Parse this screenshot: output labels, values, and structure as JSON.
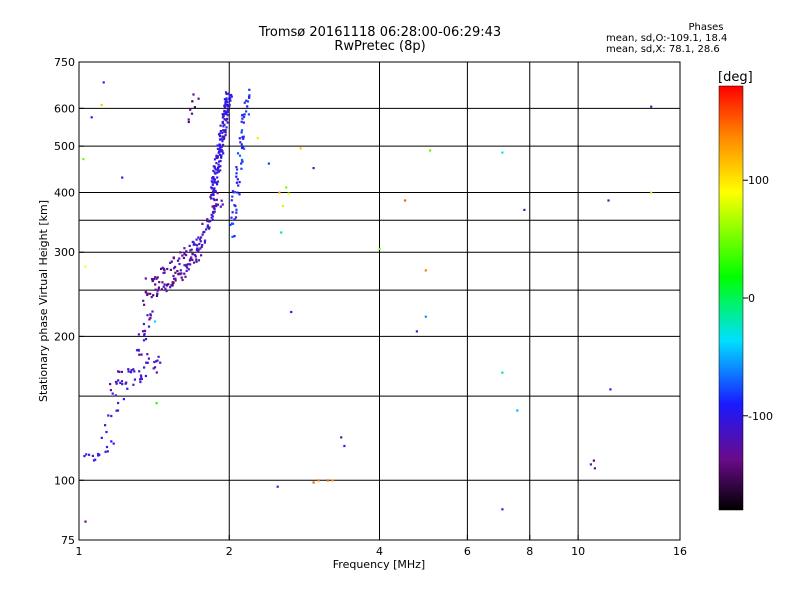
{
  "header": {
    "title_line1": "Tromsø 20161118 06:28:00-06:29:43",
    "title_line2": "RwPretec (8p)"
  },
  "phases": {
    "title": "Phases",
    "line_o": "mean, sd,O:-109.1, 18.4",
    "line_x": "mean, sd,X:  78.1, 28.6"
  },
  "colorbar": {
    "label": "[deg]",
    "ticks": [
      {
        "value": 100,
        "text": "100"
      },
      {
        "value": 0,
        "text": "0"
      },
      {
        "value": -100,
        "text": "-100"
      }
    ],
    "range": [
      -180,
      180
    ]
  },
  "chart_data": {
    "type": "scatter",
    "title": "Tromsø 20161118 06:28:00-06:29:43",
    "subtitle": "RwPretec (8p)",
    "xlabel": "Frequency [MHz]",
    "ylabel": "Stationary phase Virtual Height [km]",
    "x_scale": "log",
    "y_scale": "log",
    "xlim": [
      1,
      16
    ],
    "ylim": [
      75,
      750
    ],
    "x_ticks": [
      1,
      2,
      4,
      6,
      8,
      10,
      16
    ],
    "y_ticks": [
      75,
      100,
      200,
      300,
      400,
      500,
      600,
      750
    ],
    "grid": true,
    "colorbar_label": "[deg]",
    "colorbar_range": [
      -180,
      180
    ],
    "series": [
      {
        "traces": [
          {
            "f_start": 1.02,
            "f_end": 1.08,
            "h_start": 113,
            "h_end": 111,
            "n": 6,
            "spread": 1.5,
            "phase": -110
          },
          {
            "f_start": 1.08,
            "f_end": 1.17,
            "h_start": 111,
            "h_end": 121,
            "n": 8,
            "spread": 2.5,
            "phase": -105
          },
          {
            "f_start": 1.1,
            "f_end": 1.25,
            "h_start": 125,
            "h_end": 155,
            "n": 10,
            "spread": 6,
            "phase": -110
          },
          {
            "f_start": 1.15,
            "f_end": 1.45,
            "h_start": 155,
            "h_end": 180,
            "n": 45,
            "spread": 10,
            "phase": -118
          },
          {
            "f_start": 1.3,
            "f_end": 1.4,
            "h_start": 185,
            "h_end": 225,
            "n": 20,
            "spread": 8,
            "phase": -122
          },
          {
            "f_start": 1.35,
            "f_end": 1.55,
            "h_start": 240,
            "h_end": 262,
            "n": 30,
            "spread": 8,
            "phase": -135
          },
          {
            "f_start": 1.55,
            "f_end": 1.75,
            "h_start": 262,
            "h_end": 300,
            "n": 40,
            "spread": 9,
            "phase": -130
          },
          {
            "f_start": 1.38,
            "f_end": 1.7,
            "h_start": 258,
            "h_end": 310,
            "n": 40,
            "spread": 7,
            "phase": -130
          },
          {
            "f_start": 1.7,
            "f_end": 1.92,
            "h_start": 300,
            "h_end": 390,
            "n": 50,
            "spread": 12,
            "phase": -120
          },
          {
            "f_start": 1.85,
            "f_end": 2.0,
            "h_start": 390,
            "h_end": 650,
            "n": 150,
            "spread": 15,
            "phase": -108
          },
          {
            "f_start": 2.02,
            "f_end": 2.18,
            "h_start": 330,
            "h_end": 650,
            "n": 65,
            "spread": 12,
            "phase": -90
          },
          {
            "f_start": 1.65,
            "f_end": 1.72,
            "h_start": 560,
            "h_end": 640,
            "n": 8,
            "spread": 6,
            "phase": -145
          }
        ],
        "points": [
          {
            "x": 1.12,
            "y": 680,
            "phase": -105
          },
          {
            "x": 1.06,
            "y": 575,
            "phase": -100
          },
          {
            "x": 1.11,
            "y": 610,
            "phase": 110
          },
          {
            "x": 1.02,
            "y": 470,
            "phase": 40
          },
          {
            "x": 1.22,
            "y": 430,
            "phase": -100
          },
          {
            "x": 1.03,
            "y": 280,
            "phase": 90
          },
          {
            "x": 1.03,
            "y": 82,
            "phase": -140
          },
          {
            "x": 1.43,
            "y": 145,
            "phase": 10
          },
          {
            "x": 1.42,
            "y": 215,
            "phase": -40
          },
          {
            "x": 2.28,
            "y": 520,
            "phase": 100
          },
          {
            "x": 2.4,
            "y": 460,
            "phase": -80
          },
          {
            "x": 2.52,
            "y": 400,
            "phase": 120
          },
          {
            "x": 2.56,
            "y": 375,
            "phase": 70
          },
          {
            "x": 2.6,
            "y": 410,
            "phase": 40
          },
          {
            "x": 2.63,
            "y": 398,
            "phase": 90
          },
          {
            "x": 2.54,
            "y": 330,
            "phase": -20
          },
          {
            "x": 2.66,
            "y": 225,
            "phase": -95
          },
          {
            "x": 2.78,
            "y": 495,
            "phase": 110
          },
          {
            "x": 2.95,
            "y": 450,
            "phase": -120
          },
          {
            "x": 3.35,
            "y": 123,
            "phase": -130
          },
          {
            "x": 3.4,
            "y": 118,
            "phase": -100
          },
          {
            "x": 2.5,
            "y": 97,
            "phase": -110
          },
          {
            "x": 2.95,
            "y": 99,
            "phase": 150
          },
          {
            "x": 3.02,
            "y": 100,
            "phase": 140
          },
          {
            "x": 3.15,
            "y": 100,
            "phase": 150
          },
          {
            "x": 3.22,
            "y": 100,
            "phase": 130
          },
          {
            "x": 4.0,
            "y": 305,
            "phase": 40
          },
          {
            "x": 4.5,
            "y": 385,
            "phase": 150
          },
          {
            "x": 4.75,
            "y": 205,
            "phase": -105
          },
          {
            "x": 4.95,
            "y": 275,
            "phase": 140
          },
          {
            "x": 4.95,
            "y": 220,
            "phase": -60
          },
          {
            "x": 5.05,
            "y": 490,
            "phase": 30
          },
          {
            "x": 7.05,
            "y": 485,
            "phase": -40
          },
          {
            "x": 7.05,
            "y": 168,
            "phase": -20
          },
          {
            "x": 7.55,
            "y": 140,
            "phase": -50
          },
          {
            "x": 7.8,
            "y": 368,
            "phase": -120
          },
          {
            "x": 7.05,
            "y": 87,
            "phase": -110
          },
          {
            "x": 10.6,
            "y": 108,
            "phase": -120
          },
          {
            "x": 10.75,
            "y": 110,
            "phase": -150
          },
          {
            "x": 10.8,
            "y": 106,
            "phase": -130
          },
          {
            "x": 11.5,
            "y": 385,
            "phase": -125
          },
          {
            "x": 11.6,
            "y": 155,
            "phase": -100
          },
          {
            "x": 14.0,
            "y": 605,
            "phase": -130
          },
          {
            "x": 14.0,
            "y": 400,
            "phase": 60
          }
        ]
      }
    ]
  }
}
